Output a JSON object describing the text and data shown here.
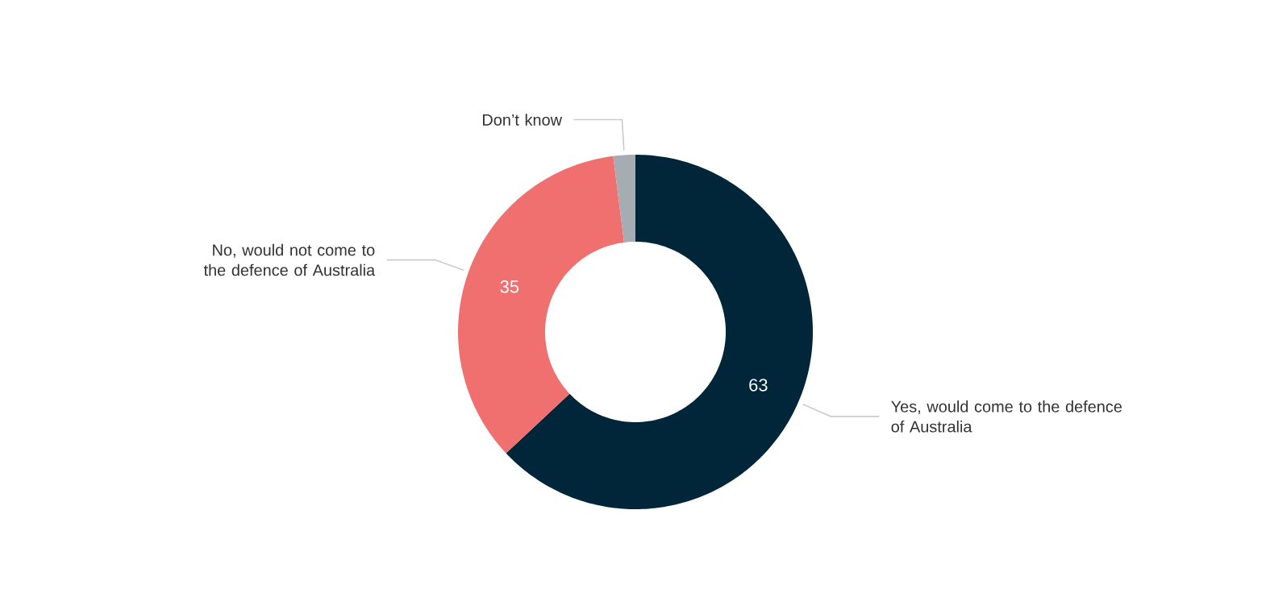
{
  "chart_data": {
    "type": "donut",
    "categories": [
      "Yes, would come to the defence of Australia",
      "No, would not come to the defence of Australia",
      "Don’t know"
    ],
    "values": [
      63,
      35,
      2
    ],
    "colors": [
      "#012639",
      "#f07070",
      "#a5adb3"
    ],
    "value_labels": [
      "63",
      "35",
      null
    ]
  }
}
